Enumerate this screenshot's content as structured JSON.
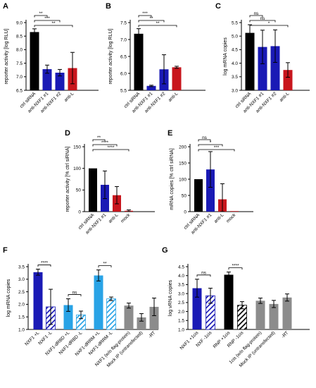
{
  "chart_data": [
    {
      "letter": "A",
      "type": "bar",
      "ylabel": "reporter activity [log RLU]",
      "ylim": [
        6.5,
        9.0
      ],
      "yticks": [
        6.5,
        7.0,
        7.5,
        8.0,
        8.5,
        9.0
      ],
      "ytick_labels": [
        "6.5",
        "7.0",
        "7.5",
        "8.0",
        "8.5",
        "9.0"
      ],
      "categories": [
        "ctrl siRNA",
        "anti-NXF1 #1",
        "anti-NXF1 #2",
        "anti-L"
      ],
      "values": [
        8.65,
        7.28,
        7.15,
        7.32
      ],
      "errors": [
        0.12,
        0.15,
        0.12,
        0.58
      ],
      "colors": [
        "#000000",
        "#1a1ab5",
        "#1a1ab5",
        "#c8161d"
      ],
      "hatched": [
        false,
        false,
        false,
        false
      ],
      "significance": [
        {
          "from": 0,
          "to": 1,
          "label": "**"
        },
        {
          "from": 0,
          "to": 2,
          "label": "***"
        },
        {
          "from": 0,
          "to": 3,
          "label": "**"
        }
      ]
    },
    {
      "letter": "B",
      "type": "bar",
      "ylabel": "reporter activity [log RLU]",
      "ylim": [
        5.5,
        7.5
      ],
      "yticks": [
        5.5,
        6.0,
        6.5,
        7.0,
        7.5
      ],
      "ytick_labels": [
        "5.5",
        "6.0",
        "6.5",
        "7.0",
        "7.5"
      ],
      "categories": [
        "ctrl siRNA",
        "anti-NXF1 #1",
        "anti-NXF1 #2",
        "anti-L"
      ],
      "values": [
        7.17,
        5.63,
        6.12,
        6.18
      ],
      "errors": [
        0.15,
        0.02,
        0.43,
        0.03
      ],
      "colors": [
        "#000000",
        "#1a1ab5",
        "#1a1ab5",
        "#c8161d"
      ],
      "hatched": [
        false,
        false,
        false,
        false
      ],
      "significance": [
        {
          "from": 0,
          "to": 1,
          "label": "***"
        },
        {
          "from": 0,
          "to": 2,
          "label": "**"
        },
        {
          "from": 0,
          "to": 3,
          "label": "**"
        }
      ]
    },
    {
      "letter": "C",
      "type": "bar",
      "ylabel": "log mRNA copies",
      "ylim": [
        3.0,
        5.5
      ],
      "yticks": [
        3.0,
        3.5,
        4.0,
        4.5,
        5.0,
        5.5
      ],
      "ytick_labels": [
        "3.0",
        "3.5",
        "4.0",
        "4.5",
        "5.0",
        "5.5"
      ],
      "categories": [
        "ctrl siRNA",
        "anti-NXF1 #1",
        "anti-NXF1 #2",
        "anti-L"
      ],
      "values": [
        5.12,
        4.6,
        4.63,
        3.75
      ],
      "errors": [
        0.3,
        0.62,
        0.6,
        0.27
      ],
      "colors": [
        "#000000",
        "#1a1ab5",
        "#1a1ab5",
        "#c8161d"
      ],
      "hatched": [
        false,
        false,
        false,
        false
      ],
      "significance": [
        {
          "from": 0,
          "to": 1,
          "label": "ns"
        },
        {
          "from": 0,
          "to": 2,
          "label": "ns"
        },
        {
          "from": 0,
          "to": 3,
          "label": "*"
        }
      ]
    },
    {
      "letter": "D",
      "type": "bar",
      "ylabel": "reporter activity [% ctrl siRNA]",
      "ylim": [
        0,
        150
      ],
      "yticks": [
        0,
        50,
        100,
        150
      ],
      "ytick_labels": [
        "0",
        "50",
        "100",
        "150"
      ],
      "categories": [
        "ctrl siRNA",
        "anti-NXF1 #1",
        "anti-L",
        "mock"
      ],
      "values": [
        100,
        62,
        38,
        2
      ],
      "errors": [
        0,
        32,
        20,
        2
      ],
      "colors": [
        "#000000",
        "#1a1ab5",
        "#c8161d",
        "#c8161d"
      ],
      "hatched": [
        false,
        false,
        false,
        false
      ],
      "significance": [
        {
          "from": 0,
          "to": 1,
          "label": "**"
        },
        {
          "from": 0,
          "to": 2,
          "label": "****"
        },
        {
          "from": 0,
          "to": 3,
          "label": "****"
        }
      ]
    },
    {
      "letter": "E",
      "type": "bar",
      "ylabel": "mRNA copies [% ctrl siRNA]",
      "ylim": [
        0,
        200
      ],
      "yticks": [
        0,
        50,
        100,
        150,
        200
      ],
      "ytick_labels": [
        "0",
        "50",
        "100",
        "150",
        "200"
      ],
      "categories": [
        "ctrl siRNA",
        "anti-NXF1 #1",
        "anti-L",
        "mock"
      ],
      "values": [
        100,
        130,
        38,
        0
      ],
      "errors": [
        0,
        55,
        48,
        0
      ],
      "colors": [
        "#000000",
        "#1a1ab5",
        "#c8161d",
        "#c8161d"
      ],
      "hatched": [
        false,
        false,
        false,
        false
      ],
      "significance": [
        {
          "from": 0,
          "to": 1,
          "label": "ns"
        },
        {
          "from": 0,
          "to": 2,
          "label": "*"
        },
        {
          "from": 0,
          "to": 3,
          "label": "***"
        }
      ]
    },
    {
      "letter": "F",
      "type": "bar",
      "ylabel": "log mRNA copies",
      "ylim": [
        1.0,
        3.5
      ],
      "yticks": [
        1.0,
        1.5,
        2.0,
        2.5,
        3.0,
        3.5
      ],
      "ytick_labels": [
        "1.0",
        "1.5",
        "2.0",
        "2.5",
        "3.0",
        "3.5"
      ],
      "categories": [
        "NXF1 +L",
        "NXF1 -L",
        "NXF1-dRBD +L",
        "NXF1-dRBD -L",
        "NXF1-dRRM +L",
        "NXF1-dRRM -L",
        "NXF1 (w/o flag-protein)",
        "Mock IP (untransfected)",
        "-RT"
      ],
      "values": [
        3.28,
        1.9,
        1.97,
        1.58,
        3.15,
        2.22,
        1.95,
        1.48,
        1.9
      ],
      "errors": [
        0.12,
        0.7,
        0.25,
        0.15,
        0.22,
        0.07,
        0.1,
        0.15,
        0.35
      ],
      "colors": [
        "#1a1ab5",
        "#1a1ab5",
        "#29a3e6",
        "#29a3e6",
        "#29a3e6",
        "#29a3e6",
        "#8c8c8c",
        "#8c8c8c",
        "#8c8c8c"
      ],
      "hatched": [
        false,
        true,
        false,
        true,
        false,
        true,
        false,
        false,
        false
      ],
      "group_gaps": [
        2,
        4,
        6
      ],
      "significance": [
        {
          "from": 0,
          "to": 1,
          "label": "****"
        },
        {
          "from": 2,
          "to": 3,
          "label": "ns"
        },
        {
          "from": 4,
          "to": 5,
          "label": "**"
        }
      ]
    },
    {
      "letter": "G",
      "type": "bar",
      "ylabel": "log vRNA copies",
      "ylim": [
        1.0,
        4.5
      ],
      "yticks": [
        1.0,
        1.5,
        2.0,
        2.5,
        3.0,
        3.5,
        4.0,
        4.5
      ],
      "ytick_labels": [
        "1.0",
        "1.5",
        "2.0",
        "2.5",
        "3.0",
        "3.5",
        "4.0",
        "4.5"
      ],
      "categories": [
        "NXF1 +1cis",
        "NXF -1cis",
        "RNP +1cis",
        "RNP -1cis",
        "1cis (w/o flag-protein)",
        "Mock IP (untransfected)",
        "-RT"
      ],
      "values": [
        3.3,
        2.88,
        4.05,
        2.35,
        2.6,
        2.42,
        2.78
      ],
      "errors": [
        0.5,
        0.42,
        0.15,
        0.2,
        0.15,
        0.2,
        0.2
      ],
      "colors": [
        "#1a1ab5",
        "#1a1ab5",
        "#000000",
        "#000000",
        "#8c8c8c",
        "#8c8c8c",
        "#8c8c8c"
      ],
      "hatched": [
        false,
        true,
        false,
        true,
        false,
        false,
        false
      ],
      "group_gaps": [
        2,
        4
      ],
      "significance": [
        {
          "from": 0,
          "to": 1,
          "label": "ns"
        },
        {
          "from": 2,
          "to": 3,
          "label": "****"
        }
      ]
    }
  ]
}
